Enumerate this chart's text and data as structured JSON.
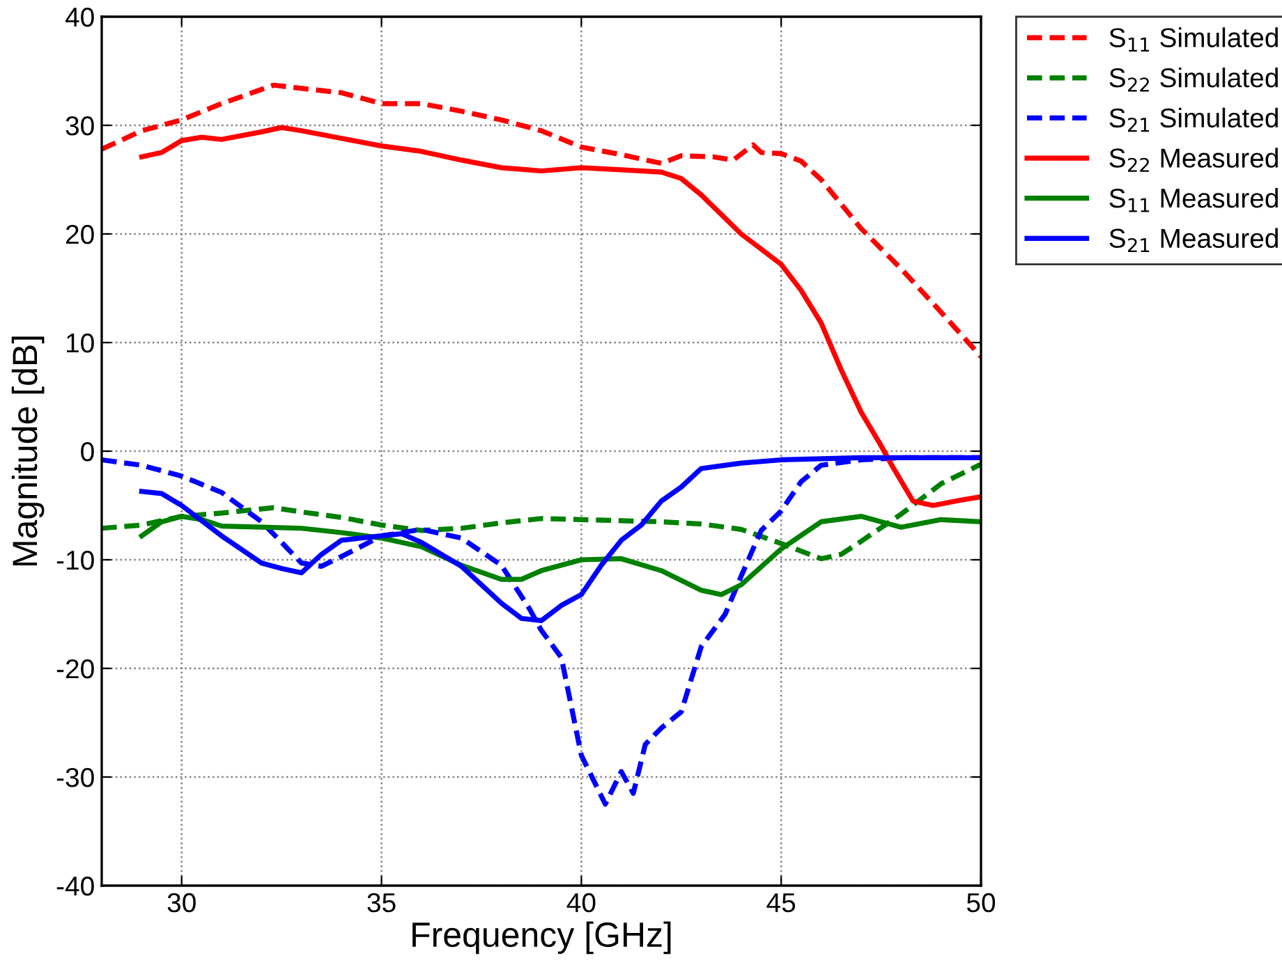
{
  "chart_data": {
    "type": "line",
    "xlabel": "Frequency [GHz]",
    "ylabel": "Magnitude [dB]",
    "xlim": [
      28,
      50
    ],
    "ylim": [
      -40,
      40
    ],
    "xticks": [
      30,
      35,
      40,
      45,
      50
    ],
    "yticks": [
      -40,
      -30,
      -20,
      -10,
      0,
      10,
      20,
      30,
      40
    ],
    "grid": true,
    "legend": "top right",
    "series": [
      {
        "name": "S$_{11}$ Simulated",
        "color": "#ff0000",
        "line_style": "dashed",
        "x": [
          28,
          29,
          30,
          31,
          32.3,
          33,
          34,
          35,
          36,
          37,
          38,
          39,
          40,
          41,
          42,
          42.5,
          43.3,
          43.8,
          44.3,
          44.5,
          45,
          45.5,
          46,
          47,
          48,
          49,
          50
        ],
        "values": [
          27.8,
          29.5,
          30.5,
          32,
          33.7,
          33.4,
          33,
          32,
          32,
          31.3,
          30.5,
          29.5,
          28,
          27.3,
          26.5,
          27.2,
          27.1,
          26.8,
          28.2,
          27.5,
          27.4,
          26.7,
          25,
          20.5,
          16.8,
          12.8,
          8.7
        ]
      },
      {
        "name": "S$_{22}$ Simulated",
        "color": "#008000",
        "line_style": "dashed",
        "x": [
          28,
          29,
          30,
          31,
          32.3,
          33,
          34,
          35,
          36,
          37,
          38,
          39,
          40,
          41,
          42,
          43,
          44,
          45,
          46,
          46.5,
          47,
          48,
          49,
          50
        ],
        "values": [
          -7.1,
          -6.8,
          -6,
          -5.7,
          -5.2,
          -5.6,
          -6.1,
          -6.8,
          -7.3,
          -7.1,
          -6.6,
          -6.2,
          -6.3,
          -6.4,
          -6.5,
          -6.7,
          -7.2,
          -8.5,
          -9.9,
          -9.5,
          -8.3,
          -5.8,
          -3,
          -1.2
        ]
      },
      {
        "name": "S$_{21}$ Simulated",
        "color": "#0000ff",
        "line_style": "dashed",
        "x": [
          28,
          29,
          30,
          31,
          32,
          33,
          33.5,
          34,
          35,
          36,
          37,
          38,
          38.7,
          39,
          39.5,
          40,
          40.6,
          41,
          41.3,
          41.6,
          42,
          42.5,
          43,
          43.6,
          44,
          44.5,
          45,
          45.5,
          46,
          47,
          48,
          50
        ],
        "values": [
          -0.8,
          -1.3,
          -2.3,
          -3.8,
          -6.5,
          -10.3,
          -10.6,
          -9.7,
          -7.8,
          -7.2,
          -8,
          -10.5,
          -14.5,
          -16.5,
          -19,
          -28,
          -32.5,
          -29.5,
          -31.5,
          -27,
          -25.5,
          -24,
          -18,
          -15,
          -11.5,
          -7.3,
          -5.5,
          -2.8,
          -1.3,
          -0.8,
          -0.6,
          -0.6
        ]
      },
      {
        "name": "S$_{22}$ Measured",
        "color": "#ff0000",
        "line_style": "solid",
        "x": [
          29,
          29.5,
          30,
          30.5,
          31,
          32,
          32.5,
          33,
          34,
          35,
          36,
          37,
          38,
          39,
          40,
          41,
          42,
          42.5,
          43,
          43.5,
          44,
          45,
          45.5,
          46,
          46.5,
          47,
          47.5,
          47.8,
          48.3,
          48.8,
          49.5,
          50
        ],
        "values": [
          27.1,
          27.5,
          28.6,
          28.9,
          28.7,
          29.4,
          29.8,
          29.5,
          28.8,
          28.1,
          27.6,
          26.8,
          26.1,
          25.8,
          26.1,
          25.9,
          25.7,
          25.1,
          23.6,
          21.8,
          20,
          17.2,
          14.8,
          11.8,
          7.5,
          3.6,
          0.5,
          -1.5,
          -4.6,
          -5,
          -4.5,
          -4.2
        ]
      },
      {
        "name": "S$_{11}$ Measured",
        "color": "#008000",
        "line_style": "solid",
        "x": [
          29,
          29.5,
          30,
          30.5,
          31,
          32,
          33,
          34,
          35,
          36,
          37,
          38,
          38.5,
          39,
          40,
          41,
          42,
          43,
          43.5,
          44,
          45,
          46,
          47,
          48,
          49,
          50
        ],
        "values": [
          -7.8,
          -6.5,
          -6,
          -6.3,
          -6.9,
          -7,
          -7.1,
          -7.5,
          -8,
          -8.8,
          -10.5,
          -11.8,
          -11.8,
          -11,
          -10,
          -9.9,
          -11,
          -12.8,
          -13.2,
          -12.3,
          -9,
          -6.5,
          -6,
          -7,
          -6.3,
          -6.5
        ]
      },
      {
        "name": "S$_{21}$ Measured",
        "color": "#0000ff",
        "line_style": "solid",
        "x": [
          29,
          29.5,
          30,
          31,
          32,
          32.5,
          33,
          33.5,
          34,
          35,
          35.5,
          36,
          37,
          38,
          38.5,
          39,
          39.5,
          40,
          40.5,
          41,
          41.5,
          42,
          42.5,
          43,
          44,
          45,
          47,
          50
        ],
        "values": [
          -3.7,
          -3.9,
          -5,
          -7.8,
          -10.3,
          -10.8,
          -11.2,
          -9.5,
          -8.2,
          -7.8,
          -7.6,
          -8.4,
          -10.6,
          -14,
          -15.4,
          -15.6,
          -14.2,
          -13.2,
          -10.5,
          -8.2,
          -6.8,
          -4.6,
          -3.3,
          -1.6,
          -1.1,
          -0.8,
          -0.6,
          -0.6
        ]
      }
    ]
  }
}
